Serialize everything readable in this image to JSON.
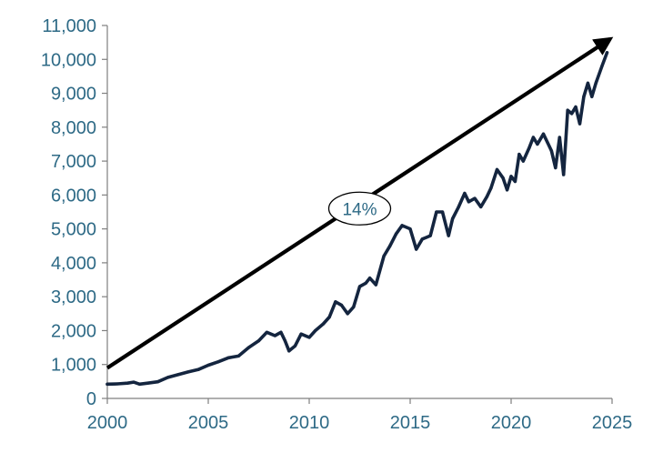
{
  "chart_data": {
    "type": "line",
    "title": "",
    "xlabel": "",
    "ylabel": "",
    "xlim": [
      2000,
      2025
    ],
    "ylim": [
      0,
      11000
    ],
    "grid": false,
    "legend": "none",
    "x_ticks": [
      2000,
      2005,
      2010,
      2015,
      2020,
      2025
    ],
    "x_tick_labels": [
      "2000",
      "2005",
      "2010",
      "2015",
      "2020",
      "2025"
    ],
    "y_ticks": [
      0,
      1000,
      2000,
      3000,
      4000,
      5000,
      6000,
      7000,
      8000,
      9000,
      10000,
      11000
    ],
    "y_tick_labels": [
      "0",
      "1,000",
      "2,000",
      "3,000",
      "4,000",
      "5,000",
      "6,000",
      "7,000",
      "8,000",
      "9,000",
      "10,000",
      "11,000"
    ],
    "colors": {
      "line": "#14253f",
      "tick_text": "#2e6a86",
      "axis": "#7f7f7f",
      "arrow": "#000000"
    },
    "series": [
      {
        "x": [
          2000.0,
          2000.5,
          2001.0,
          2001.3,
          2001.6,
          2002.0,
          2002.5,
          2003.0,
          2003.5,
          2004.0,
          2004.5,
          2005.0,
          2005.5,
          2006.0,
          2006.5,
          2007.0,
          2007.5,
          2007.9,
          2008.3,
          2008.6,
          2008.8,
          2009.0,
          2009.3,
          2009.6,
          2010.0,
          2010.3,
          2010.7,
          2011.0,
          2011.3,
          2011.6,
          2011.9,
          2012.2,
          2012.5,
          2012.8,
          2013.0,
          2013.3,
          2013.7,
          2014.0,
          2014.3,
          2014.6,
          2015.0,
          2015.3,
          2015.6,
          2015.8,
          2016.0,
          2016.3,
          2016.6,
          2016.9,
          2017.1,
          2017.4,
          2017.7,
          2017.9,
          2018.2,
          2018.5,
          2018.8,
          2019.0,
          2019.3,
          2019.6,
          2019.8,
          2020.0,
          2020.2,
          2020.4,
          2020.6,
          2020.9,
          2021.1,
          2021.3,
          2021.6,
          2021.8,
          2022.0,
          2022.2,
          2022.4,
          2022.6,
          2022.8,
          2023.0,
          2023.2,
          2023.4,
          2023.6,
          2023.8,
          2024.0,
          2024.2,
          2024.5,
          2024.75
        ],
        "values": [
          420,
          430,
          450,
          480,
          420,
          450,
          490,
          620,
          700,
          780,
          850,
          980,
          1080,
          1200,
          1250,
          1500,
          1700,
          1950,
          1850,
          1950,
          1700,
          1400,
          1550,
          1900,
          1800,
          2000,
          2200,
          2400,
          2850,
          2750,
          2500,
          2700,
          3300,
          3400,
          3550,
          3350,
          4200,
          4500,
          4850,
          5100,
          5000,
          4400,
          4700,
          4750,
          4800,
          5500,
          5500,
          4800,
          5300,
          5650,
          6050,
          5800,
          5900,
          5650,
          5950,
          6200,
          6750,
          6500,
          6150,
          6550,
          6400,
          7200,
          7000,
          7400,
          7700,
          7500,
          7800,
          7550,
          7300,
          6800,
          7700,
          6600,
          8500,
          8400,
          8600,
          8100,
          8900,
          9300,
          8900,
          9300,
          9800,
          10200
        ]
      }
    ],
    "annotations": [
      {
        "type": "arrow",
        "from": [
          2000.0,
          900
        ],
        "to": [
          2024.9,
          10600
        ]
      },
      {
        "type": "label",
        "text": "14%",
        "at": [
          2012.5,
          5600
        ]
      }
    ]
  }
}
